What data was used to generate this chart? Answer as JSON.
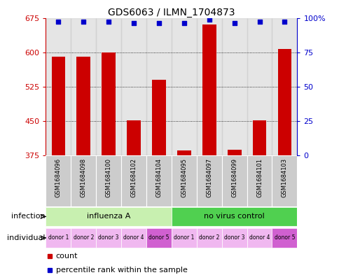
{
  "title": "GDS6063 / ILMN_1704873",
  "samples": [
    "GSM1684096",
    "GSM1684098",
    "GSM1684100",
    "GSM1684102",
    "GSM1684104",
    "GSM1684095",
    "GSM1684097",
    "GSM1684099",
    "GSM1684101",
    "GSM1684103"
  ],
  "counts": [
    590,
    590,
    600,
    452,
    540,
    385,
    660,
    388,
    452,
    607
  ],
  "percentiles": [
    97,
    97,
    97,
    96,
    96,
    96,
    99,
    96,
    97,
    97
  ],
  "ylim_left": [
    375,
    675
  ],
  "ylim_right": [
    0,
    100
  ],
  "yticks_left": [
    375,
    450,
    525,
    600,
    675
  ],
  "yticks_right": [
    0,
    25,
    50,
    75,
    100
  ],
  "donors": [
    "donor 1",
    "donor 2",
    "donor 3",
    "donor 4",
    "donor 5",
    "donor 1",
    "donor 2",
    "donor 3",
    "donor 4",
    "donor 5"
  ],
  "bar_color": "#cc0000",
  "dot_color": "#0000cc",
  "left_axis_color": "#cc0000",
  "right_axis_color": "#0000cc",
  "bar_width": 0.55,
  "col_bg_color": "#cccccc",
  "infection_light_green": "#c8f0b0",
  "infection_dark_green": "#50d050",
  "donor_light_pink": "#f0b8f0",
  "donor_dark_pink": "#d060d0",
  "legend_count_label": "count",
  "legend_percentile_label": "percentile rank within the sample"
}
